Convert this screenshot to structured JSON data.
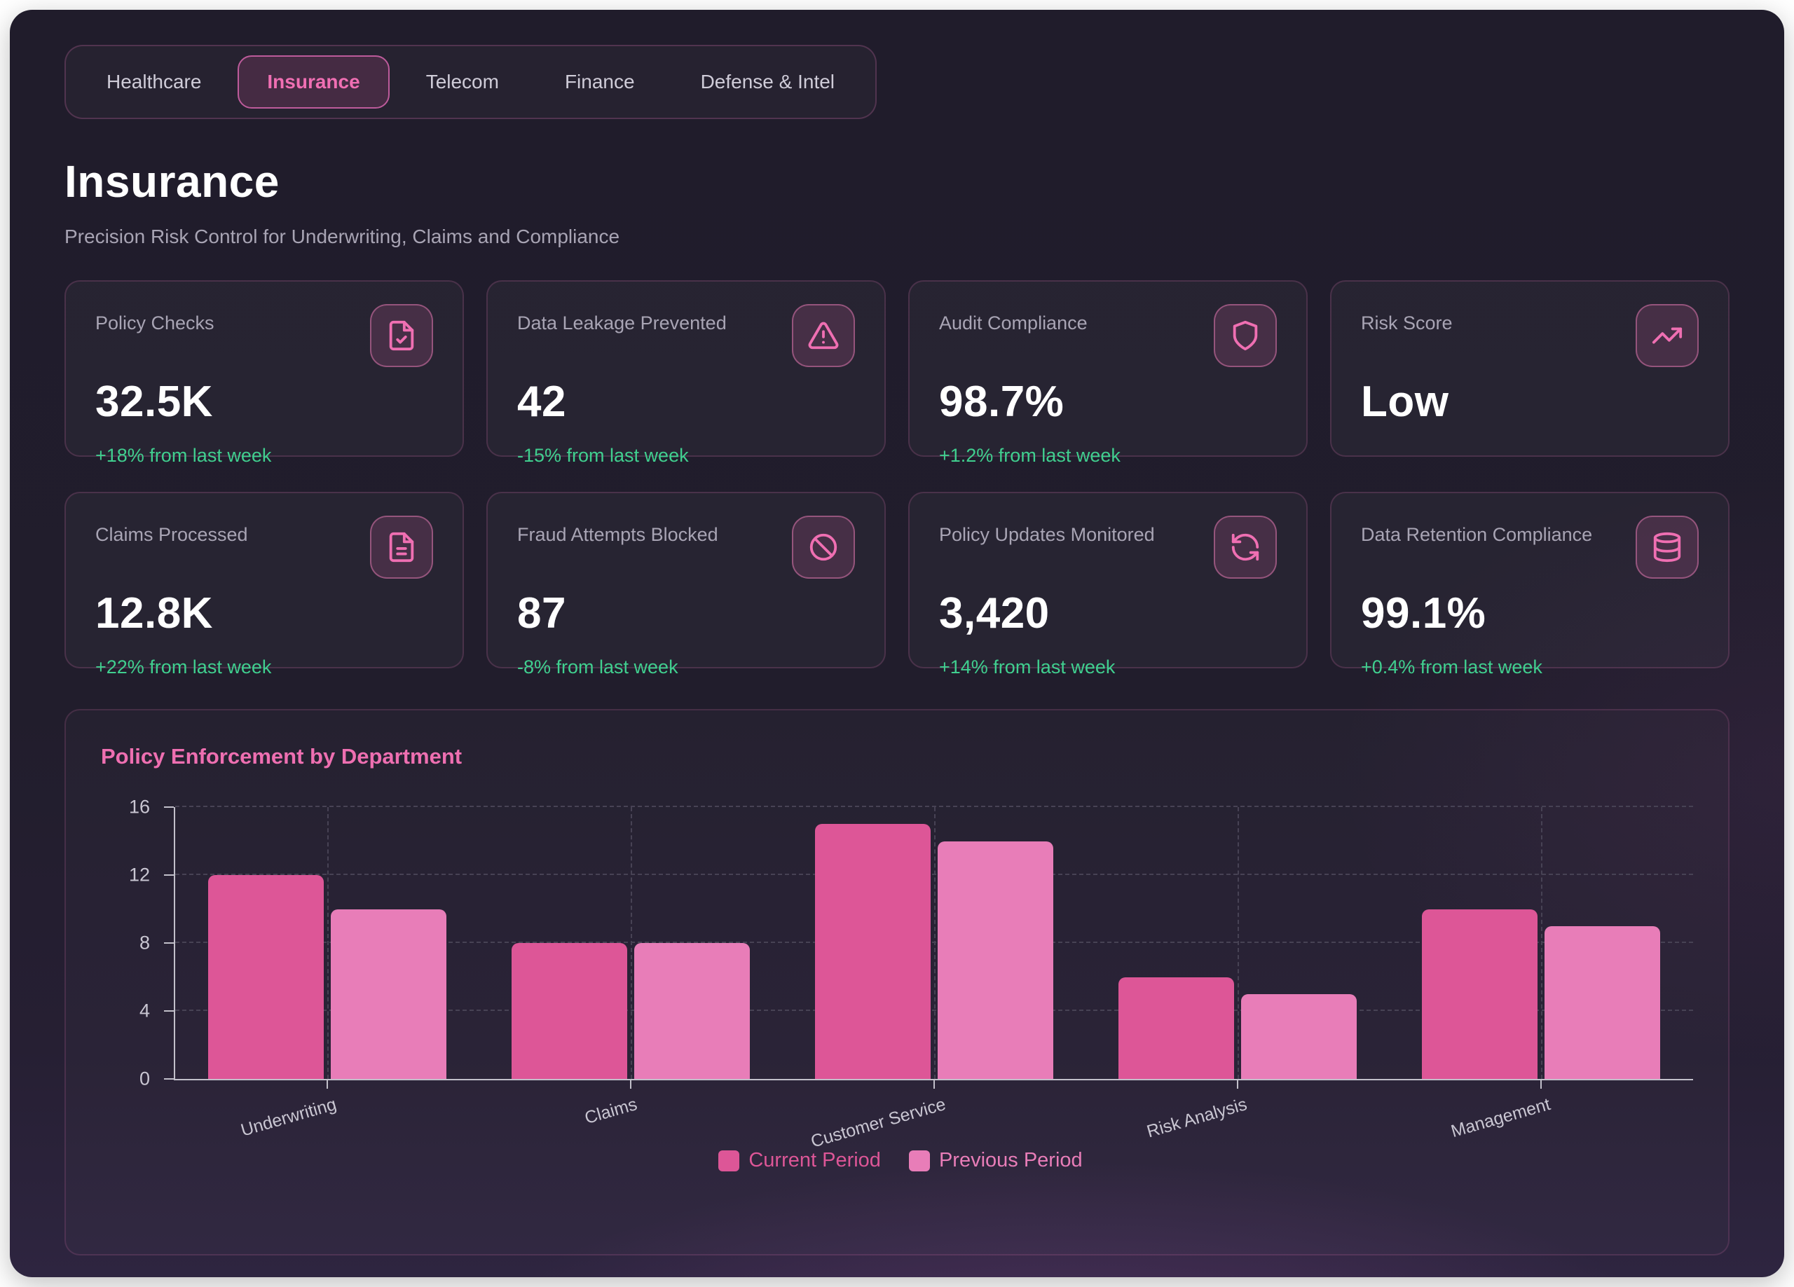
{
  "tabs": [
    {
      "label": "Healthcare",
      "active": false
    },
    {
      "label": "Insurance",
      "active": true
    },
    {
      "label": "Telecom",
      "active": false
    },
    {
      "label": "Finance",
      "active": false
    },
    {
      "label": "Defense & Intel",
      "active": false
    }
  ],
  "header": {
    "title": "Insurance",
    "subtitle": "Precision Risk Control for Underwriting, Claims and Compliance"
  },
  "stats": [
    {
      "label": "Policy Checks",
      "value": "32.5K",
      "delta": "+18% from last week",
      "icon": "file-check-icon"
    },
    {
      "label": "Data Leakage Prevented",
      "value": "42",
      "delta": "-15% from last week",
      "icon": "alert-triangle-icon"
    },
    {
      "label": "Audit Compliance",
      "value": "98.7%",
      "delta": "+1.2% from last week",
      "icon": "shield-icon"
    },
    {
      "label": "Risk Score",
      "value": "Low",
      "delta": "",
      "icon": "trending-up-icon"
    },
    {
      "label": "Claims Processed",
      "value": "12.8K",
      "delta": "+22% from last week",
      "icon": "file-text-icon"
    },
    {
      "label": "Fraud Attempts Blocked",
      "value": "87",
      "delta": "-8% from last week",
      "icon": "ban-icon"
    },
    {
      "label": "Policy Updates Monitored",
      "value": "3,420",
      "delta": "+14% from last week",
      "icon": "refresh-icon"
    },
    {
      "label": "Data Retention Compliance",
      "value": "99.1%",
      "delta": "+0.4% from last week",
      "icon": "database-icon"
    }
  ],
  "chart_data": {
    "type": "bar",
    "title": "Policy Enforcement by Department",
    "categories": [
      "Underwriting",
      "Claims",
      "Customer Service",
      "Risk Analysis",
      "Management"
    ],
    "series": [
      {
        "name": "Current Period",
        "color": "#dd5697",
        "values": [
          12,
          8,
          15,
          6,
          10
        ]
      },
      {
        "name": "Previous Period",
        "color": "#e87db8",
        "values": [
          10,
          8,
          14,
          5,
          9
        ]
      }
    ],
    "ylim": [
      0,
      16
    ],
    "yticks": [
      0,
      4,
      8,
      12,
      16
    ],
    "grid": "dashed",
    "legend_position": "bottom"
  },
  "colors": {
    "accent_pink": "#ef6fb2",
    "positive_green": "#40cf8f",
    "page_background": "#211d2c",
    "outer_background": "#ffffff"
  }
}
